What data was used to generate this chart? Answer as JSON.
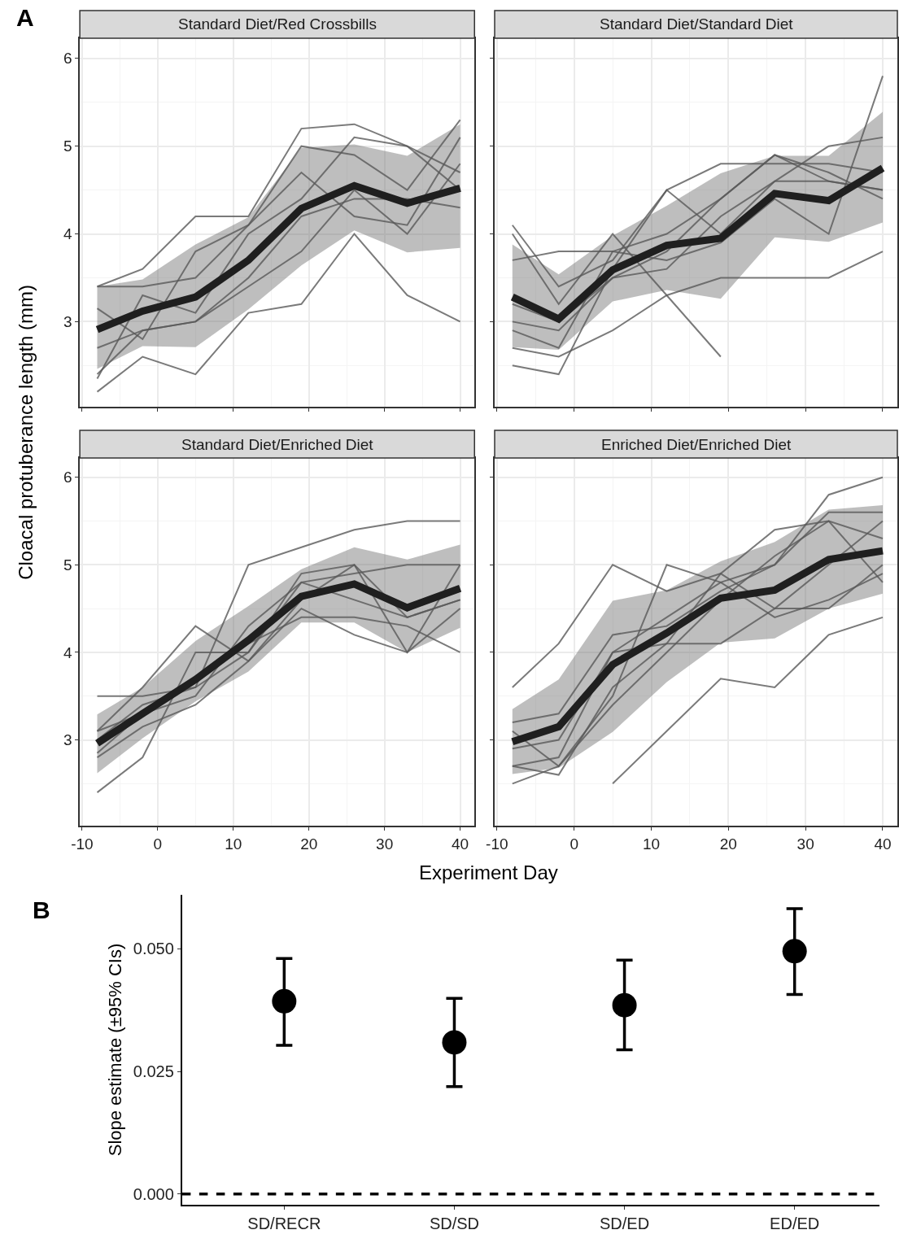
{
  "chart_data": [
    {
      "type": "line",
      "title": "Standard Diet/Red Crossbills",
      "xlabel": "Experiment Day",
      "ylabel": "Cloacal protuberance length (mm)",
      "annotations": [
        "A"
      ],
      "x": [
        -8,
        -2,
        5,
        12,
        19,
        26,
        33,
        40
      ],
      "xlim": [
        -10.3,
        41.9
      ],
      "ylim": [
        2.03,
        6.23
      ],
      "xticks": [
        {
          "value": -10,
          "label": null
        },
        {
          "value": 0,
          "label": null
        },
        {
          "value": 10,
          "label": null
        },
        {
          "value": 20,
          "label": null
        },
        {
          "value": 30,
          "label": null
        },
        {
          "value": 40,
          "label": null
        }
      ],
      "yticks": [
        3,
        4,
        5,
        6
      ],
      "grid": true,
      "tick_labels": "y",
      "series": [
        {
          "color": "#595959",
          "values": [
            3.4,
            3.6,
            4.2,
            4.2,
            5.2,
            5.25,
            5.0,
            4.7
          ]
        },
        {
          "color": "#595959",
          "values": [
            3.4,
            3.4,
            3.5,
            4.1,
            5.0,
            4.9,
            4.5,
            5.3
          ]
        },
        {
          "color": "#595959",
          "values": [
            3.15,
            2.8,
            3.8,
            4.1,
            4.7,
            4.2,
            4.1,
            5.1
          ]
        },
        {
          "color": "#595959",
          "values": [
            2.7,
            2.9,
            3.0,
            3.5,
            4.2,
            4.4,
            4.4,
            4.3
          ]
        },
        {
          "color": "#595959",
          "values": [
            2.35,
            3.3,
            3.1,
            4.0,
            4.4,
            5.1,
            5.0,
            4.5
          ]
        },
        {
          "color": "#595959",
          "values": [
            2.2,
            2.6,
            2.4,
            3.1,
            3.2,
            4.0,
            3.3,
            3.0
          ]
        },
        {
          "color": "#595959",
          "values": [
            2.4,
            2.9,
            3.0,
            3.4,
            3.8,
            4.5,
            4.0,
            4.8
          ]
        },
        {
          "color": "#1f1f1f",
          "values": [
            2.91,
            3.12,
            3.28,
            3.7,
            4.29,
            4.55,
            4.35,
            4.52
          ],
          "lower": [
            2.46,
            2.72,
            2.71,
            3.14,
            3.64,
            4.04,
            3.79,
            3.84
          ],
          "upper": [
            3.4,
            3.48,
            3.88,
            4.19,
            4.98,
            5.02,
            4.89,
            5.25
          ]
        }
      ]
    },
    {
      "type": "line",
      "title": "Standard Diet/Standard Diet",
      "x": [
        -8,
        -2,
        5,
        12,
        19,
        26,
        33,
        40
      ],
      "xlim": [
        -10.3,
        41.9
      ],
      "ylim": [
        2.03,
        6.23
      ],
      "xticks": [
        {
          "value": -10,
          "label": null
        },
        {
          "value": 0,
          "label": null
        },
        {
          "value": 10,
          "label": null
        },
        {
          "value": 20,
          "label": null
        },
        {
          "value": 30,
          "label": null
        },
        {
          "value": 40,
          "label": null
        }
      ],
      "yticks": [
        {
          "value": 3,
          "label": null
        },
        {
          "value": 4,
          "label": null
        },
        {
          "value": 5,
          "label": null
        },
        {
          "value": 6,
          "label": null
        }
      ],
      "grid": true,
      "tick_labels": false,
      "series": [
        {
          "color": "#595959",
          "values": [
            3.7,
            3.8,
            3.8,
            4.0,
            4.4,
            4.9,
            4.6,
            4.5
          ]
        },
        {
          "color": "#595959",
          "values": [
            4.1,
            3.4,
            3.7,
            4.5,
            4.0,
            4.6,
            4.6,
            4.5
          ]
        },
        {
          "color": "#595959",
          "values": [
            4.0,
            3.2,
            4.0,
            3.3,
            2.6,
            null,
            null,
            null
          ]
        },
        {
          "color": "#595959",
          "values": [
            3.2,
            3.0,
            3.5,
            3.8,
            4.4,
            4.9,
            4.7,
            4.4
          ]
        },
        {
          "color": "#595959",
          "values": [
            2.7,
            2.6,
            2.9,
            3.3,
            3.5,
            3.5,
            3.5,
            3.8
          ]
        },
        {
          "color": "#595959",
          "values": [
            2.5,
            2.4,
            3.6,
            4.5,
            4.8,
            4.8,
            4.8,
            4.7
          ]
        },
        {
          "color": "#595959",
          "values": [
            2.9,
            2.7,
            3.8,
            3.7,
            3.9,
            4.4,
            4.0,
            5.8
          ]
        },
        {
          "color": "#595959",
          "values": [
            3.0,
            2.9,
            3.5,
            3.6,
            4.2,
            4.6,
            5.0,
            5.1
          ]
        },
        {
          "color": "#1f1f1f",
          "values": [
            3.28,
            3.03,
            3.59,
            3.87,
            3.95,
            4.46,
            4.38,
            4.75
          ],
          "lower": [
            2.71,
            2.68,
            3.23,
            3.36,
            3.26,
            3.96,
            3.91,
            4.13
          ],
          "upper": [
            3.88,
            3.54,
            3.98,
            4.32,
            4.69,
            4.89,
            4.89,
            5.39
          ]
        }
      ]
    },
    {
      "type": "line",
      "title": "Standard Diet/Enriched Diet",
      "x": [
        -8,
        -2,
        5,
        12,
        19,
        26,
        33,
        40
      ],
      "xlim": [
        -10.3,
        41.9
      ],
      "ylim": [
        2.02,
        6.22
      ],
      "xticks": [
        {
          "value": -10,
          "label": "-10"
        },
        0,
        10,
        20,
        30,
        40
      ],
      "yticks": [
        3,
        4,
        5,
        6
      ],
      "grid": true,
      "series": [
        {
          "color": "#595959",
          "values": [
            3.5,
            3.5,
            3.6,
            5.0,
            5.2,
            5.4,
            5.5,
            5.5
          ]
        },
        {
          "color": "#595959",
          "values": [
            2.4,
            2.8,
            4.0,
            4.0,
            4.8,
            4.9,
            5.0,
            5.0
          ]
        },
        {
          "color": "#595959",
          "values": [
            3.1,
            3.6,
            4.3,
            3.9,
            4.6,
            5.0,
            4.0,
            5.0
          ]
        },
        {
          "color": "#595959",
          "values": [
            3.0,
            3.4,
            3.6,
            4.0,
            4.9,
            5.0,
            4.4,
            4.6
          ]
        },
        {
          "color": "#595959",
          "values": [
            2.85,
            3.3,
            3.7,
            4.1,
            4.4,
            4.4,
            4.3,
            4.0
          ]
        },
        {
          "color": "#595959",
          "values": [
            2.8,
            3.15,
            3.4,
            3.9,
            4.5,
            4.2,
            4.0,
            4.5
          ]
        },
        {
          "color": "#595959",
          "values": [
            3.1,
            3.3,
            3.5,
            4.3,
            4.8,
            4.6,
            4.4,
            4.6
          ]
        },
        {
          "color": "#1f1f1f",
          "values": [
            2.96,
            3.3,
            3.69,
            4.14,
            4.64,
            4.78,
            4.51,
            4.73
          ],
          "lower": [
            2.62,
            3.02,
            3.44,
            3.78,
            4.34,
            4.34,
            4.0,
            4.28
          ],
          "upper": [
            3.29,
            3.6,
            4.13,
            4.53,
            4.95,
            5.2,
            5.06,
            5.23
          ]
        }
      ]
    },
    {
      "type": "line",
      "title": "Enriched Diet/Enriched Diet",
      "x": [
        -8,
        -2,
        5,
        12,
        19,
        26,
        33,
        40
      ],
      "xlim": [
        -10.3,
        41.9
      ],
      "ylim": [
        2.02,
        6.22
      ],
      "xticks": [
        {
          "value": -10,
          "label": "-10"
        },
        0,
        10,
        20,
        30,
        40
      ],
      "yticks": [
        {
          "value": 3,
          "label": null
        },
        {
          "value": 4,
          "label": null
        },
        {
          "value": 5,
          "label": null
        },
        {
          "value": 6,
          "label": null
        }
      ],
      "grid": true,
      "tick_labels": "x",
      "series": [
        {
          "color": "#595959",
          "values": [
            3.6,
            4.1,
            5.0,
            4.7,
            4.9,
            5.4,
            5.5,
            5.3
          ]
        },
        {
          "color": "#595959",
          "values": [
            3.2,
            3.3,
            4.2,
            4.3,
            4.7,
            5.0,
            5.8,
            6.0
          ]
        },
        {
          "color": "#595959",
          "values": [
            2.7,
            2.8,
            4.0,
            4.4,
            4.8,
            5.0,
            5.6,
            5.6
          ]
        },
        {
          "color": "#595959",
          "values": [
            2.7,
            2.6,
            3.6,
            4.1,
            4.9,
            4.5,
            4.5,
            5.0
          ]
        },
        {
          "color": "#595959",
          "values": [
            2.5,
            2.7,
            3.4,
            4.0,
            4.6,
            5.1,
            5.5,
            4.8
          ]
        },
        {
          "color": "#595959",
          "values": [
            null,
            null,
            2.5,
            3.1,
            3.7,
            3.6,
            4.2,
            4.4
          ]
        },
        {
          "color": "#595959",
          "values": [
            3.1,
            2.7,
            3.5,
            5.0,
            4.8,
            4.4,
            4.6,
            4.9
          ]
        },
        {
          "color": "#595959",
          "values": [
            2.9,
            3.0,
            4.0,
            4.1,
            4.1,
            4.5,
            5.0,
            5.5
          ]
        },
        {
          "color": "#1f1f1f",
          "values": [
            2.98,
            3.15,
            3.86,
            4.22,
            4.62,
            4.71,
            5.06,
            5.16
          ],
          "lower": [
            2.61,
            2.68,
            3.09,
            3.66,
            4.11,
            4.16,
            4.5,
            4.67
          ],
          "upper": [
            3.35,
            3.69,
            4.59,
            4.71,
            5.04,
            5.26,
            5.63,
            5.68
          ]
        }
      ]
    },
    {
      "type": "scatter",
      "ylabel": "Slope estimate (±95% CIs)",
      "annotations": [
        "B"
      ],
      "categories": [
        "SD/RECR",
        "SD/SD",
        "SD/ED",
        "ED/ED"
      ],
      "values": [
        0.0393,
        0.0309,
        0.0385,
        0.0495
      ],
      "errors": [
        [
          0.0303,
          0.048
        ],
        [
          0.0219,
          0.0399
        ],
        [
          0.0294,
          0.0477
        ],
        [
          0.0407,
          0.0582
        ]
      ],
      "color": "#000000",
      "marker": "circle",
      "ylim": [
        -0.0022,
        0.061
      ],
      "yticks": [
        {
          "value": 0,
          "label": "0.000"
        },
        0.025,
        {
          "value": 0.05,
          "label": "0.050"
        }
      ],
      "ref_lines": [
        {
          "axis": "y",
          "value": 0,
          "line_style": "dashed",
          "color": "#000000"
        }
      ]
    }
  ]
}
